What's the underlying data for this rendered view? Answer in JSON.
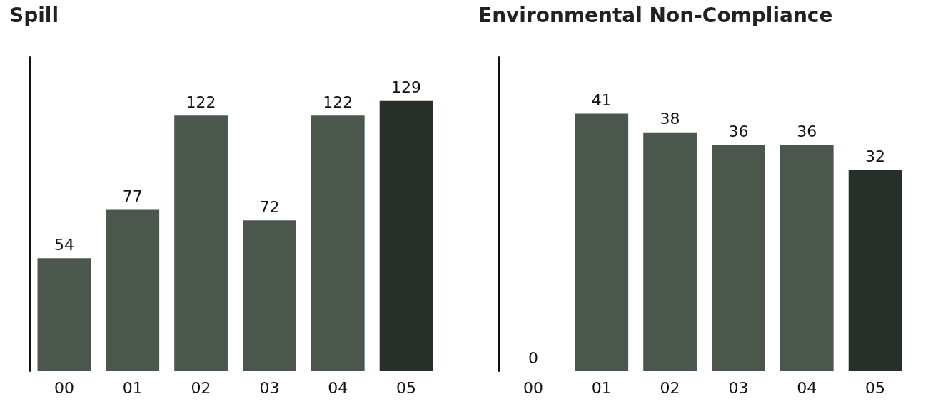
{
  "chart_data": [
    {
      "type": "bar",
      "title": "Spill",
      "categories": [
        "00",
        "01",
        "02",
        "03",
        "04",
        "05"
      ],
      "values": [
        54,
        77,
        122,
        72,
        122,
        129
      ],
      "colors": [
        "#4b574d",
        "#4b574d",
        "#4b574d",
        "#4b574d",
        "#4b574d",
        "#263028"
      ],
      "data_labels": true,
      "tick_labels": "x",
      "grid": false
    },
    {
      "type": "bar",
      "title": "Environmental Non-Compliance",
      "categories": [
        "00",
        "01",
        "02",
        "03",
        "04",
        "05"
      ],
      "values": [
        0,
        41,
        38,
        36,
        36,
        32
      ],
      "colors": [
        "#4b574d",
        "#4b574d",
        "#4b574d",
        "#4b574d",
        "#4b574d",
        "#263028"
      ],
      "data_labels": true,
      "tick_labels": "x",
      "grid": false
    }
  ]
}
